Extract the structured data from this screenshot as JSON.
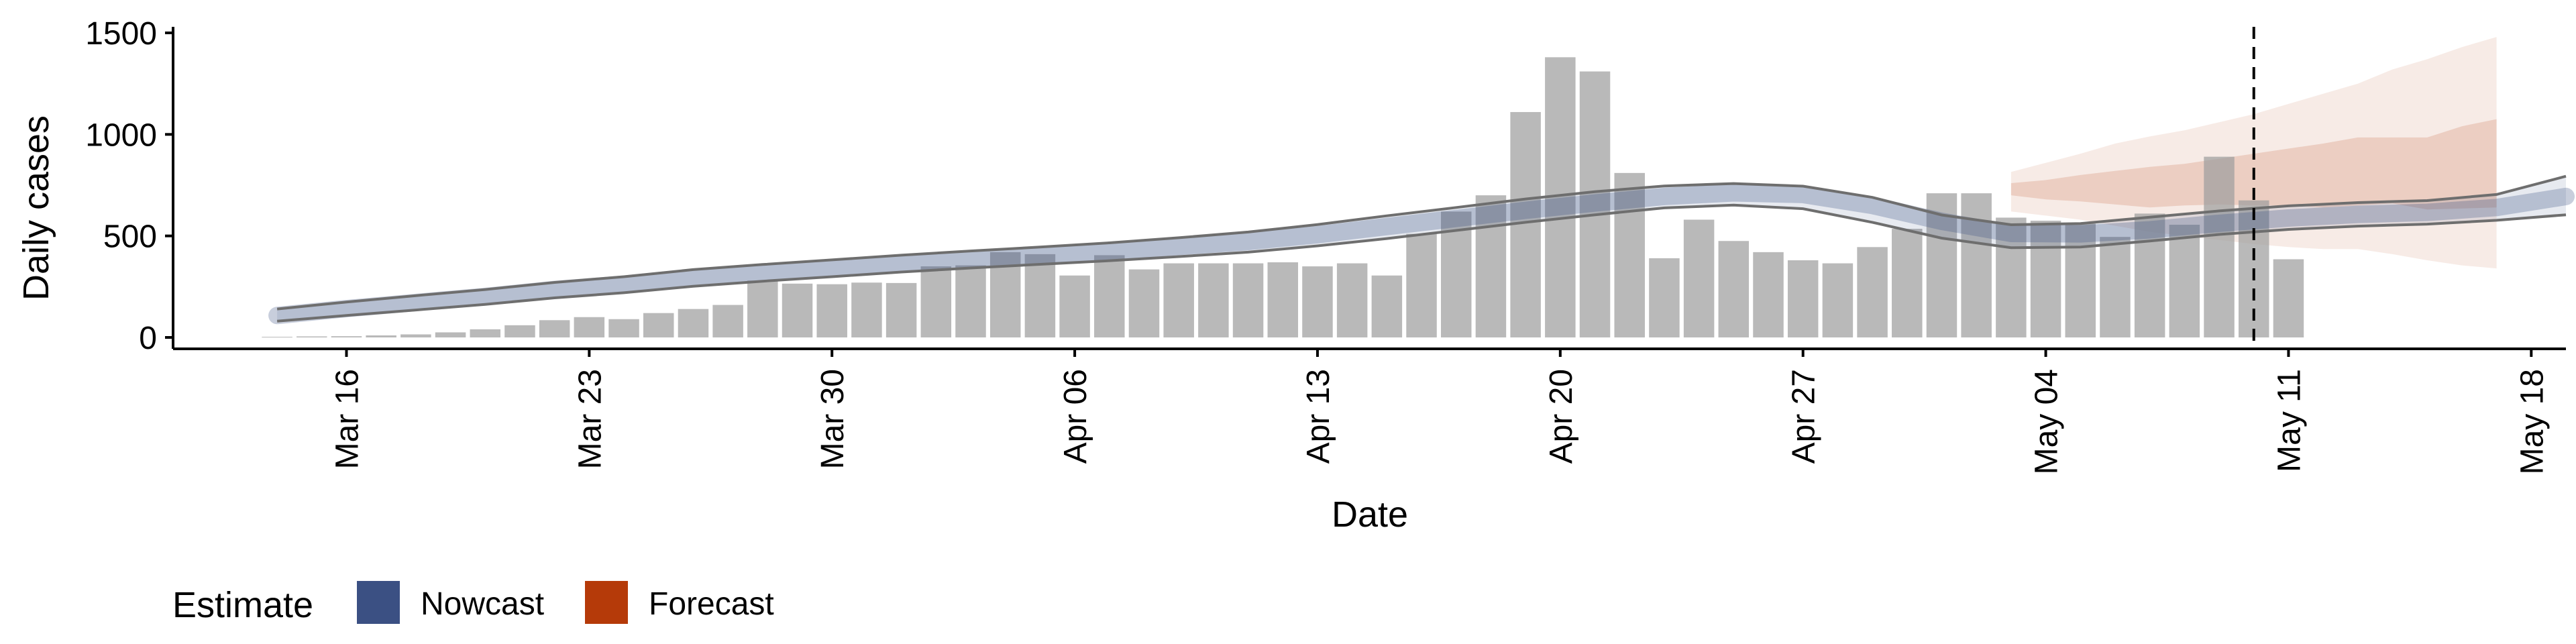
{
  "chart_data": {
    "type": "bar",
    "xlabel": "Date",
    "ylabel": "Daily cases",
    "ylim": [
      0,
      1500
    ],
    "yticks": [
      0,
      500,
      1000,
      1500
    ],
    "x_range": [
      "2020-03-11",
      "2020-05-19"
    ],
    "xticks": [
      {
        "date": "2020-03-16",
        "label": "Mar 16"
      },
      {
        "date": "2020-03-23",
        "label": "Mar 23"
      },
      {
        "date": "2020-03-30",
        "label": "Mar 30"
      },
      {
        "date": "2020-04-06",
        "label": "Apr 06"
      },
      {
        "date": "2020-04-13",
        "label": "Apr 13"
      },
      {
        "date": "2020-04-20",
        "label": "Apr 20"
      },
      {
        "date": "2020-04-27",
        "label": "Apr 27"
      },
      {
        "date": "2020-05-04",
        "label": "May 04"
      },
      {
        "date": "2020-05-11",
        "label": "May 11"
      },
      {
        "date": "2020-05-18",
        "label": "May 18"
      }
    ],
    "grid": false,
    "legend_position": "bottom-left",
    "bars": {
      "start_date": "2020-03-14",
      "values": [
        3,
        5,
        6,
        10,
        15,
        25,
        40,
        60,
        85,
        100,
        90,
        120,
        140,
        160,
        280,
        265,
        262,
        270,
        268,
        350,
        355,
        420,
        410,
        305,
        405,
        335,
        365,
        365,
        365,
        370,
        350,
        365,
        305,
        510,
        620,
        700,
        1110,
        1380,
        1310,
        810,
        390,
        580,
        475,
        420,
        380,
        365,
        445,
        535,
        710,
        710,
        590,
        575,
        560,
        495,
        610,
        555,
        890,
        675,
        385
      ],
      "color": "#9e9e9e"
    },
    "nowcast": {
      "start_date": "2020-03-14",
      "dates_step_days": 2,
      "median": [
        108,
        142,
        172,
        202,
        236,
        262,
        296,
        320,
        342,
        366,
        386,
        404,
        424,
        448,
        472,
        506,
        546,
        586,
        626,
        662,
        694,
        712,
        704,
        650,
        572,
        512,
        510,
        530,
        562,
        588,
        606,
        616,
        640,
        694
      ],
      "lower90": [
        80,
        108,
        135,
        163,
        195,
        220,
        252,
        277,
        299,
        322,
        342,
        360,
        378,
        398,
        420,
        451,
        487,
        527,
        567,
        604,
        638,
        652,
        634,
        567,
        489,
        442,
        445,
        475,
        507,
        532,
        548,
        558,
        577,
        604
      ],
      "upper90": [
        140,
        174,
        206,
        236,
        271,
        299,
        334,
        359,
        382,
        405,
        426,
        445,
        466,
        491,
        519,
        556,
        599,
        640,
        682,
        718,
        746,
        758,
        745,
        690,
        603,
        555,
        561,
        592,
        623,
        648,
        664,
        674,
        704,
        794
      ],
      "color": "#3b5083"
    },
    "forecast": {
      "start_date": "2020-05-03",
      "dates_step_days": 1,
      "lower90": [
        620,
        600,
        580,
        550,
        520,
        500,
        480,
        460,
        445,
        435,
        435,
        410,
        380,
        355,
        340
      ],
      "lower50": [
        700,
        680,
        670,
        655,
        640,
        650,
        655,
        650,
        650,
        640,
        650,
        660,
        630,
        635,
        640
      ],
      "upper50": [
        760,
        775,
        800,
        820,
        840,
        855,
        880,
        905,
        930,
        955,
        985,
        985,
        985,
        1040,
        1075
      ],
      "upper90": [
        815,
        860,
        905,
        955,
        990,
        1020,
        1060,
        1100,
        1150,
        1200,
        1250,
        1320,
        1370,
        1430,
        1480
      ],
      "color": "#b53a09"
    },
    "cutoff_date": "2020-05-10",
    "legend": {
      "title": "Estimate",
      "items": [
        {
          "label": "Nowcast",
          "color": "#3b5083"
        },
        {
          "label": "Forecast",
          "color": "#b53a09"
        }
      ]
    }
  }
}
